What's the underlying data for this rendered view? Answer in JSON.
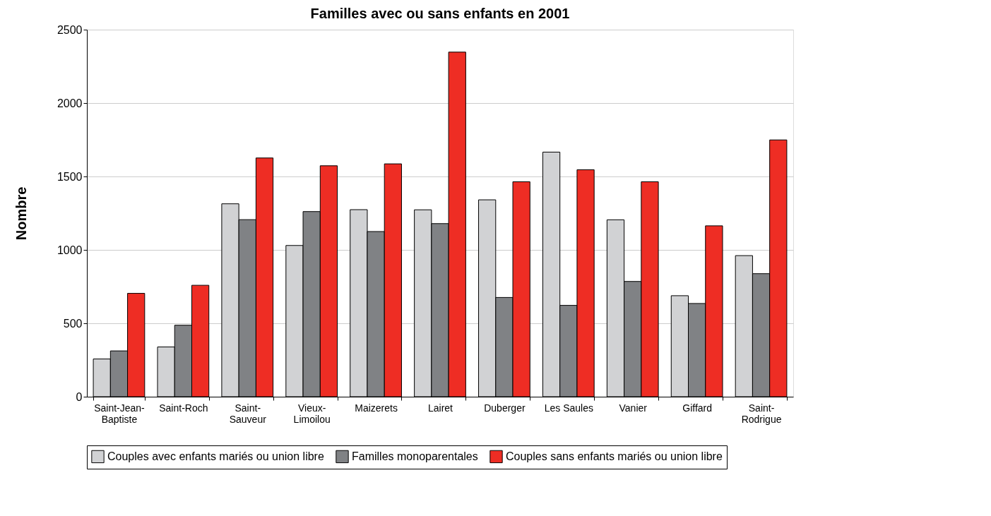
{
  "chart_data": {
    "type": "bar",
    "title": "Familles avec ou sans enfants en 2001",
    "ylabel": "Nombre",
    "categories": [
      "Saint-Jean-\nBaptiste",
      "Saint-Roch",
      "Saint-\nSauveur",
      "Vieux-\nLimoilou",
      "Maizerets",
      "Lairet",
      "Duberger",
      "Les Saules",
      "Vanier",
      "Giffard",
      "Saint-\nRodrigue"
    ],
    "series": [
      {
        "name": "Couples avec enfants mariés ou union libre",
        "color": "#d1d2d4",
        "values": [
          257,
          339,
          1314,
          1030,
          1274,
          1273,
          1341,
          1666,
          1205,
          688,
          961
        ]
      },
      {
        "name": "Familles monoparentales",
        "color": "#808285",
        "values": [
          312,
          487,
          1206,
          1261,
          1125,
          1179,
          676,
          622,
          785,
          635,
          838
        ]
      },
      {
        "name": "Couples sans enfants mariés ou union libre",
        "color": "#ee2d24",
        "values": [
          704,
          759,
          1626,
          1573,
          1586,
          2347,
          1464,
          1546,
          1464,
          1164,
          1749
        ]
      }
    ],
    "ylim": [
      0,
      2500
    ],
    "yticks": [
      0,
      500,
      1000,
      1500,
      2000,
      2500
    ],
    "grid": "y",
    "legend": "bottom"
  }
}
